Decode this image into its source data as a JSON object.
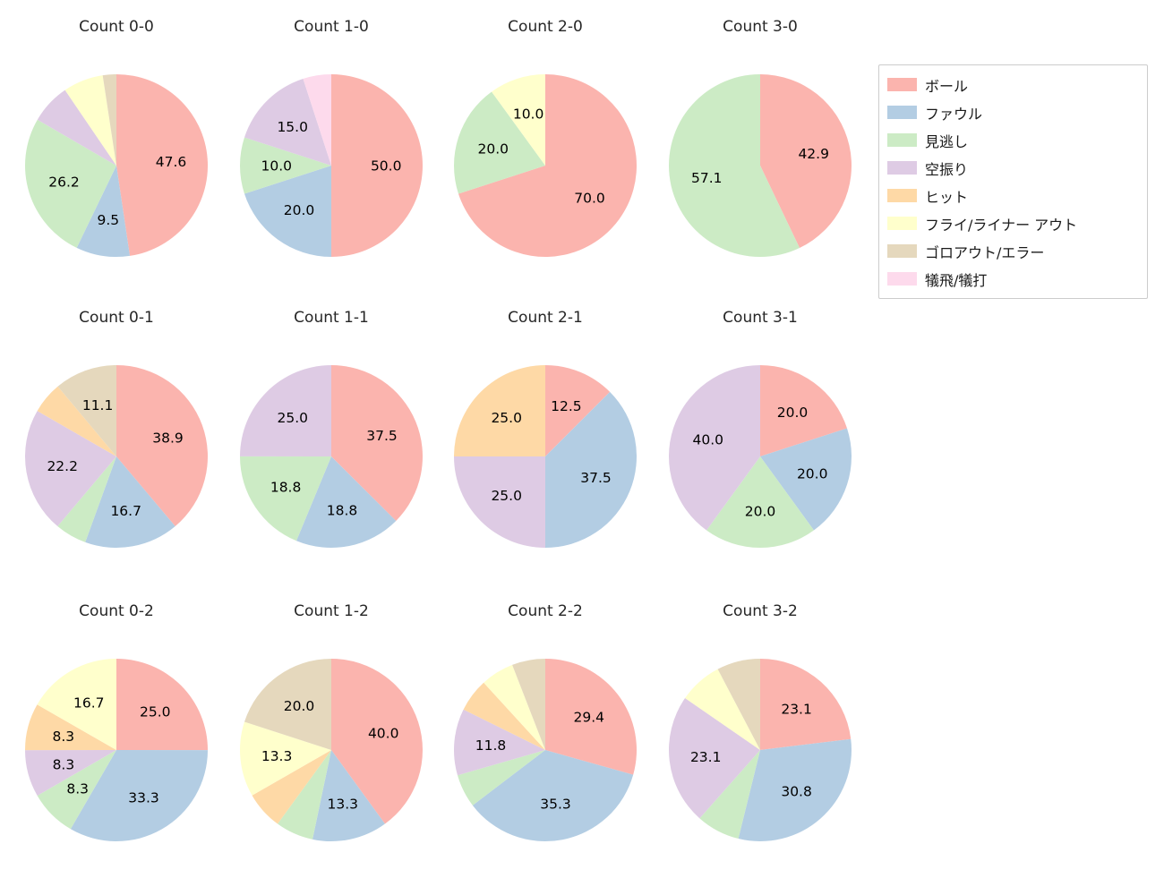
{
  "figure": {
    "background_color": "#ffffff",
    "text_color": "#262626"
  },
  "legend": {
    "position": "top-right",
    "border_color": "#cccccc",
    "items": [
      {
        "label": "ボール",
        "color": "#fbb4ae"
      },
      {
        "label": "ファウル",
        "color": "#b3cde3"
      },
      {
        "label": "見逃し",
        "color": "#ccebc5"
      },
      {
        "label": "空振り",
        "color": "#decbe4"
      },
      {
        "label": "ヒット",
        "color": "#fed9a6"
      },
      {
        "label": "フライ/ライナー アウト",
        "color": "#ffffcc"
      },
      {
        "label": "ゴロアウト/エラー",
        "color": "#e5d8bd"
      },
      {
        "label": "犠飛/犠打",
        "color": "#fddaec"
      }
    ]
  },
  "chart_data": [
    {
      "type": "pie",
      "title": "Count 0-0",
      "start_angle": 90,
      "direction": "clockwise",
      "slices": [
        {
          "label": "ボール",
          "value": 47.6,
          "pct_label": "47.6"
        },
        {
          "label": "ファウル",
          "value": 9.5,
          "pct_label": "9.5"
        },
        {
          "label": "見逃し",
          "value": 26.2,
          "pct_label": "26.2"
        },
        {
          "label": "空振り",
          "value": 7.1,
          "pct_label": ""
        },
        {
          "label": "フライ/ライナー アウト",
          "value": 7.1,
          "pct_label": ""
        },
        {
          "label": "ゴロアウト/エラー",
          "value": 2.4,
          "pct_label": ""
        }
      ]
    },
    {
      "type": "pie",
      "title": "Count 1-0",
      "start_angle": 90,
      "direction": "clockwise",
      "slices": [
        {
          "label": "ボール",
          "value": 50.0,
          "pct_label": "50.0"
        },
        {
          "label": "ファウル",
          "value": 20.0,
          "pct_label": "20.0"
        },
        {
          "label": "見逃し",
          "value": 10.0,
          "pct_label": "10.0"
        },
        {
          "label": "空振り",
          "value": 15.0,
          "pct_label": "15.0"
        },
        {
          "label": "犠飛/犠打",
          "value": 5.0,
          "pct_label": ""
        }
      ]
    },
    {
      "type": "pie",
      "title": "Count 2-0",
      "start_angle": 90,
      "direction": "clockwise",
      "slices": [
        {
          "label": "ボール",
          "value": 70.0,
          "pct_label": "70.0"
        },
        {
          "label": "見逃し",
          "value": 20.0,
          "pct_label": "20.0"
        },
        {
          "label": "フライ/ライナー アウト",
          "value": 10.0,
          "pct_label": "10.0"
        }
      ]
    },
    {
      "type": "pie",
      "title": "Count 3-0",
      "start_angle": 90,
      "direction": "clockwise",
      "slices": [
        {
          "label": "ボール",
          "value": 42.9,
          "pct_label": "42.9"
        },
        {
          "label": "見逃し",
          "value": 57.1,
          "pct_label": "57.1"
        }
      ]
    },
    {
      "type": "pie",
      "title": "Count 0-1",
      "start_angle": 90,
      "direction": "clockwise",
      "slices": [
        {
          "label": "ボール",
          "value": 38.9,
          "pct_label": "38.9"
        },
        {
          "label": "ファウル",
          "value": 16.7,
          "pct_label": "16.7"
        },
        {
          "label": "見逃し",
          "value": 5.6,
          "pct_label": ""
        },
        {
          "label": "空振り",
          "value": 22.2,
          "pct_label": "22.2"
        },
        {
          "label": "ヒット",
          "value": 5.6,
          "pct_label": ""
        },
        {
          "label": "ゴロアウト/エラー",
          "value": 11.1,
          "pct_label": "11.1"
        }
      ]
    },
    {
      "type": "pie",
      "title": "Count 1-1",
      "start_angle": 90,
      "direction": "clockwise",
      "slices": [
        {
          "label": "ボール",
          "value": 37.5,
          "pct_label": "37.5"
        },
        {
          "label": "ファウル",
          "value": 18.8,
          "pct_label": "18.8"
        },
        {
          "label": "見逃し",
          "value": 18.8,
          "pct_label": "18.8"
        },
        {
          "label": "空振り",
          "value": 25.0,
          "pct_label": "25.0"
        }
      ]
    },
    {
      "type": "pie",
      "title": "Count 2-1",
      "start_angle": 90,
      "direction": "clockwise",
      "slices": [
        {
          "label": "ボール",
          "value": 12.5,
          "pct_label": "12.5"
        },
        {
          "label": "ファウル",
          "value": 37.5,
          "pct_label": "37.5"
        },
        {
          "label": "空振り",
          "value": 25.0,
          "pct_label": "25.0"
        },
        {
          "label": "ヒット",
          "value": 25.0,
          "pct_label": "25.0"
        }
      ]
    },
    {
      "type": "pie",
      "title": "Count 3-1",
      "start_angle": 90,
      "direction": "clockwise",
      "slices": [
        {
          "label": "ボール",
          "value": 20.0,
          "pct_label": "20.0"
        },
        {
          "label": "ファウル",
          "value": 20.0,
          "pct_label": "20.0"
        },
        {
          "label": "見逃し",
          "value": 20.0,
          "pct_label": "20.0"
        },
        {
          "label": "空振り",
          "value": 40.0,
          "pct_label": "40.0"
        }
      ]
    },
    {
      "type": "pie",
      "title": "Count 0-2",
      "start_angle": 90,
      "direction": "clockwise",
      "slices": [
        {
          "label": "ボール",
          "value": 25.0,
          "pct_label": "25.0"
        },
        {
          "label": "ファウル",
          "value": 33.3,
          "pct_label": "33.3"
        },
        {
          "label": "見逃し",
          "value": 8.3,
          "pct_label": "8.3"
        },
        {
          "label": "空振り",
          "value": 8.3,
          "pct_label": "8.3"
        },
        {
          "label": "ヒット",
          "value": 8.3,
          "pct_label": "8.3"
        },
        {
          "label": "フライ/ライナー アウト",
          "value": 16.7,
          "pct_label": "16.7"
        }
      ]
    },
    {
      "type": "pie",
      "title": "Count 1-2",
      "start_angle": 90,
      "direction": "clockwise",
      "slices": [
        {
          "label": "ボール",
          "value": 40.0,
          "pct_label": "40.0"
        },
        {
          "label": "ファウル",
          "value": 13.3,
          "pct_label": "13.3"
        },
        {
          "label": "見逃し",
          "value": 6.7,
          "pct_label": ""
        },
        {
          "label": "ヒット",
          "value": 6.7,
          "pct_label": ""
        },
        {
          "label": "フライ/ライナー アウト",
          "value": 13.3,
          "pct_label": "13.3"
        },
        {
          "label": "ゴロアウト/エラー",
          "value": 20.0,
          "pct_label": "20.0"
        }
      ]
    },
    {
      "type": "pie",
      "title": "Count 2-2",
      "start_angle": 90,
      "direction": "clockwise",
      "slices": [
        {
          "label": "ボール",
          "value": 29.4,
          "pct_label": "29.4"
        },
        {
          "label": "ファウル",
          "value": 35.3,
          "pct_label": "35.3"
        },
        {
          "label": "見逃し",
          "value": 5.9,
          "pct_label": ""
        },
        {
          "label": "空振り",
          "value": 11.8,
          "pct_label": "11.8"
        },
        {
          "label": "ヒット",
          "value": 5.9,
          "pct_label": ""
        },
        {
          "label": "フライ/ライナー アウト",
          "value": 5.9,
          "pct_label": ""
        },
        {
          "label": "ゴロアウト/エラー",
          "value": 5.9,
          "pct_label": ""
        }
      ]
    },
    {
      "type": "pie",
      "title": "Count 3-2",
      "start_angle": 90,
      "direction": "clockwise",
      "slices": [
        {
          "label": "ボール",
          "value": 23.1,
          "pct_label": "23.1"
        },
        {
          "label": "ファウル",
          "value": 30.8,
          "pct_label": "30.8"
        },
        {
          "label": "見逃し",
          "value": 7.7,
          "pct_label": ""
        },
        {
          "label": "空振り",
          "value": 23.1,
          "pct_label": "23.1"
        },
        {
          "label": "フライ/ライナー アウト",
          "value": 7.7,
          "pct_label": ""
        },
        {
          "label": "ゴロアウト/エラー",
          "value": 7.7,
          "pct_label": ""
        }
      ]
    }
  ]
}
